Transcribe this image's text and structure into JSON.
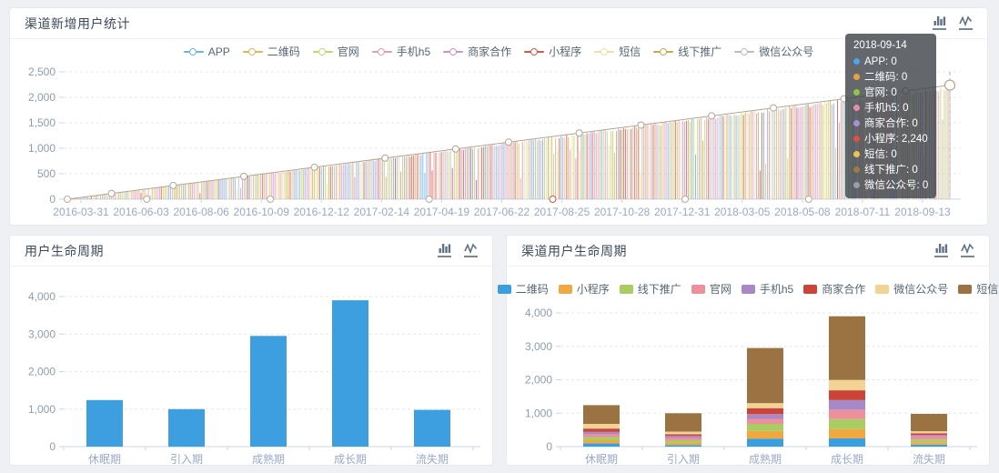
{
  "page": {
    "background": "#eef0f4"
  },
  "panels": {
    "top": {
      "title": "渠道新增用户统计"
    },
    "bottom_left": {
      "title": "用户生命周期"
    },
    "bottom_right": {
      "title": "渠道用户生命周期"
    }
  },
  "toolbox": {
    "bar_toggle": "switch-to-bar-chart",
    "line_toggle": "switch-to-line-chart"
  },
  "tooltip": {
    "title": "2018-09-14",
    "rows": [
      {
        "label": "APP",
        "value": "0",
        "color": "#4da6e8"
      },
      {
        "label": "二维码",
        "value": "0",
        "color": "#e8a33d"
      },
      {
        "label": "官网",
        "value": "0",
        "color": "#8ec63f"
      },
      {
        "label": "手机h5",
        "value": "0",
        "color": "#e88ca3"
      },
      {
        "label": "商家合作",
        "value": "0",
        "color": "#a98fd1"
      },
      {
        "label": "小程序",
        "value": "2,240",
        "color": "#e34f3d"
      },
      {
        "label": "短信",
        "value": "0",
        "color": "#eec34e"
      },
      {
        "label": "线下推广",
        "value": "0",
        "color": "#9f7a42"
      },
      {
        "label": "微信公众号",
        "value": "0",
        "color": "#9e9e9e"
      }
    ]
  },
  "chart_data": [
    {
      "id": "channel-new-users",
      "type": "line",
      "title": "渠道新增用户统计",
      "legend_position": "top",
      "grid": true,
      "ylim": [
        0,
        2500
      ],
      "y_ticks": [
        "0",
        "500",
        "1,000",
        "1,500",
        "2,000",
        "2,500"
      ],
      "x_ticks": [
        "2016-03-31",
        "2016-06-03",
        "2016-08-06",
        "2016-10-09",
        "2016-12-12",
        "2017-02-14",
        "2017-04-19",
        "2017-06-22",
        "2017-08-25",
        "2017-10-28",
        "2017-12-31",
        "2018-03-05",
        "2018-05-08",
        "2018-07-11",
        "2018-09-13"
      ],
      "series": [
        {
          "name": "APP",
          "color": "#6cb3e0"
        },
        {
          "name": "二维码",
          "color": "#d6b85f"
        },
        {
          "name": "官网",
          "color": "#c8d36e"
        },
        {
          "name": "手机h5",
          "color": "#e29cb5"
        },
        {
          "name": "商家合作",
          "color": "#c795ca"
        },
        {
          "name": "小程序",
          "color": "#d2574b"
        },
        {
          "name": "短信",
          "color": "#eedfa3"
        },
        {
          "name": "线下推广",
          "color": "#c9a84f"
        },
        {
          "name": "微信公众号",
          "color": "#bcbcbc"
        }
      ],
      "pattern": "daily new-user counts from 2016-03-31 to 2018-09-14; each day a single channel spikes up to a linearly rising trend value (0 at start, about 2,240 at the end) while all other channels stay at 0",
      "trend_start": 0,
      "trend_end": 2240,
      "hovered_point": {
        "date": "2018-09-14",
        "series": "小程序",
        "value": 2240
      }
    },
    {
      "id": "user-lifecycle",
      "type": "bar",
      "title": "用户生命周期",
      "categories": [
        "休眠期",
        "引入期",
        "成熟期",
        "成长期",
        "流失期"
      ],
      "values": [
        1240,
        1000,
        2950,
        3900,
        980
      ],
      "ylim": [
        0,
        4000
      ],
      "y_ticks": [
        "0",
        "1,000",
        "2,000",
        "3,000",
        "4,000"
      ],
      "bar_color": "#3d9ee0"
    },
    {
      "id": "channel-user-lifecycle",
      "type": "stacked-bar",
      "title": "渠道用户生命周期",
      "categories": [
        "休眠期",
        "引入期",
        "成熟期",
        "成长期",
        "流失期"
      ],
      "ylim": [
        0,
        4000
      ],
      "y_ticks": [
        "0",
        "1,000",
        "2,000",
        "3,000",
        "4,000"
      ],
      "series": [
        {
          "name": "二维码",
          "color": "#3a9fe0",
          "values": [
            100,
            50,
            240,
            245,
            60
          ]
        },
        {
          "name": "小程序",
          "color": "#efa940",
          "values": [
            90,
            70,
            230,
            280,
            70
          ]
        },
        {
          "name": "线下推广",
          "color": "#a9cd62",
          "values": [
            95,
            70,
            210,
            300,
            80
          ]
        },
        {
          "name": "官网",
          "color": "#ee8f9b",
          "values": [
            85,
            70,
            150,
            270,
            100
          ]
        },
        {
          "name": "手机h5",
          "color": "#a988c8",
          "values": [
            75,
            60,
            140,
            300,
            40
          ]
        },
        {
          "name": "商家合作",
          "color": "#cc4438",
          "values": [
            95,
            50,
            180,
            290,
            50
          ]
        },
        {
          "name": "微信公众号",
          "color": "#f2d394",
          "values": [
            140,
            80,
            150,
            310,
            60
          ]
        },
        {
          "name": "短信",
          "color": "#9b7342",
          "values": [
            560,
            550,
            1650,
            1905,
            520
          ]
        }
      ]
    }
  ]
}
